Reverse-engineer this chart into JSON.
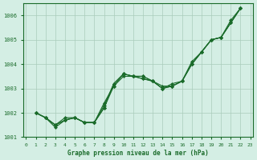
{
  "title": "Graphe pression niveau de la mer (hPa)",
  "xlabel": "Graphe pression niveau de la mer (hPa)",
  "ylim": [
    1001.0,
    1006.5
  ],
  "yticks": [
    1001,
    1002,
    1003,
    1004,
    1005,
    1006
  ],
  "background_color": "#d4eee4",
  "grid_color": "#aaccbb",
  "line_color": "#1a6b2a",
  "marker_color": "#1a6b2a",
  "series": [
    [
      1002.0,
      1001.8,
      1001.4,
      1001.7,
      1001.8,
      1001.6,
      1001.6,
      1002.2,
      1003.1,
      1003.6,
      1003.5,
      1003.4,
      1003.3,
      1003.0,
      1003.1,
      1003.3,
      1004.0,
      1004.5,
      1005.0,
      1005.1,
      1005.8,
      1006.3
    ],
    [
      1002.0,
      1001.8,
      1001.5,
      1001.8,
      1001.8,
      1001.6,
      1001.6,
      1002.4,
      1003.1,
      1003.5,
      1003.5,
      1003.4,
      1003.3,
      1003.0,
      1003.2,
      1003.3,
      1004.1,
      1004.5,
      1005.0,
      1005.1,
      1005.7,
      1006.3
    ],
    [
      1002.0,
      1001.8,
      1001.5,
      1001.7,
      1001.8,
      1001.6,
      1001.6,
      1002.3,
      1003.2,
      1003.6,
      1003.5,
      1003.5,
      1003.3,
      1003.0,
      1003.1,
      1003.3,
      1004.0,
      1004.5,
      1005.0,
      1005.1,
      1005.7,
      1006.3
    ],
    [
      1002.0,
      1001.8,
      1001.5,
      1001.7,
      1001.8,
      1001.6,
      1001.6,
      1002.2,
      1003.2,
      1003.6,
      1003.5,
      1003.5,
      1003.3,
      1003.1,
      1003.1,
      1003.3,
      1004.0,
      1004.5,
      1005.0,
      1005.1,
      1005.7,
      1006.3
    ]
  ]
}
